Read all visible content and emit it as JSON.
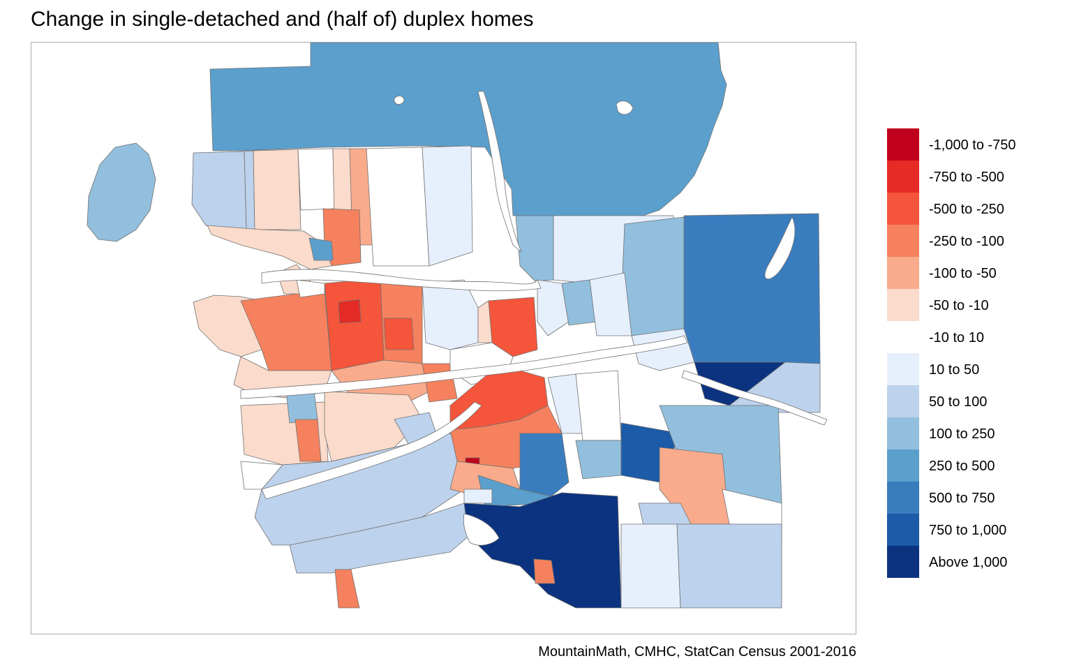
{
  "title": "Change in single-detached and (half of) duplex homes",
  "caption": "MountainMath, CMHC, StatCan Census 2001-2016",
  "legend": {
    "items": [
      {
        "label": "-1,000 to -750",
        "color": "#c0001d"
      },
      {
        "label": "-750 to -500",
        "color": "#e42b25"
      },
      {
        "label": "-500 to -250",
        "color": "#f5553b"
      },
      {
        "label": "-250 to -100",
        "color": "#f6815e"
      },
      {
        "label": "-100 to -50",
        "color": "#f9ab8c"
      },
      {
        "label": "-50 to -10",
        "color": "#fbdbcb"
      },
      {
        "label": "-10 to 10",
        "color": "#ffffff"
      },
      {
        "label": "10 to 50",
        "color": "#e6effc"
      },
      {
        "label": "50 to 100",
        "color": "#bdd2ec"
      },
      {
        "label": "100 to 250",
        "color": "#92bfdd"
      },
      {
        "label": "250 to 500",
        "color": "#5b9fcd"
      },
      {
        "label": "500 to 750",
        "color": "#3a7dbe"
      },
      {
        "label": "750 to 1,000",
        "color": "#1c5ba8"
      },
      {
        "label": "Above 1,000",
        "color": "#0b3380"
      }
    ]
  },
  "map": {
    "boundary_color": "#707070",
    "water_color": "#ffffff"
  }
}
